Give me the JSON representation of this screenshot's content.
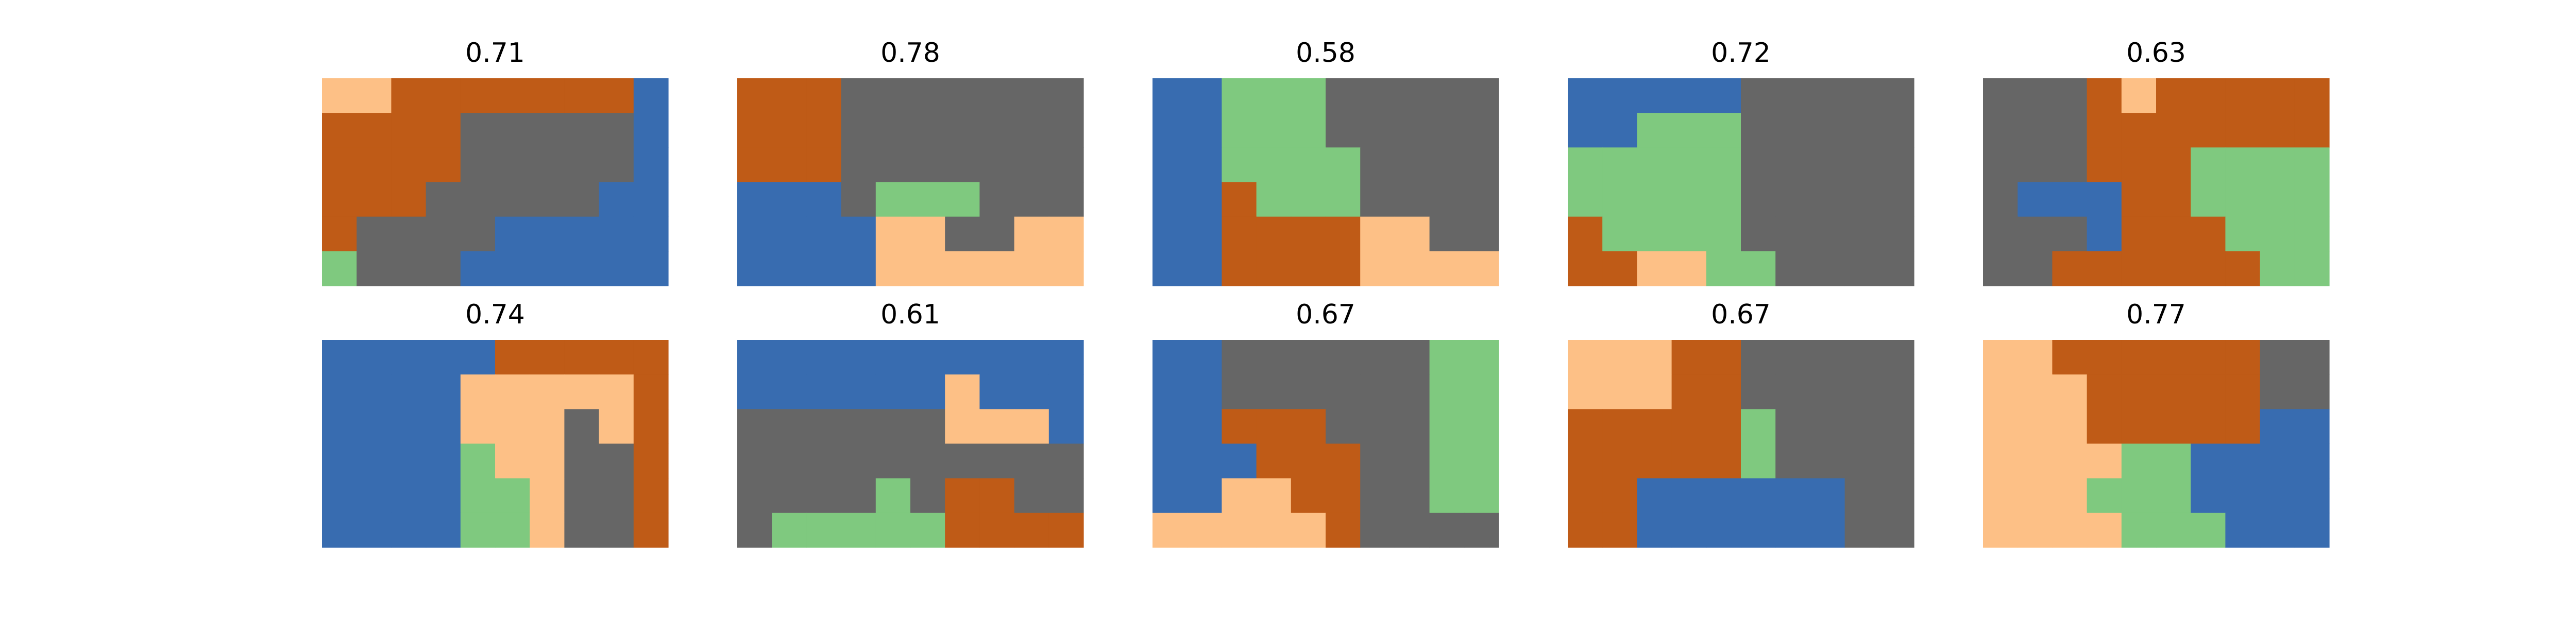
{
  "palette": {
    "blue": "#386cb0",
    "orange": "#bf5b17",
    "gray": "#666666",
    "green": "#7fc97f",
    "peach": "#fdc086"
  },
  "chart_data": [
    {
      "type": "heatmap",
      "title": "0.71",
      "grid": [
        [
          "peach",
          "peach",
          "orange",
          "orange",
          "orange",
          "orange",
          "orange",
          "orange",
          "orange",
          "blue"
        ],
        [
          "orange",
          "orange",
          "orange",
          "orange",
          "gray",
          "gray",
          "gray",
          "gray",
          "gray",
          "blue"
        ],
        [
          "orange",
          "orange",
          "orange",
          "orange",
          "gray",
          "gray",
          "gray",
          "gray",
          "gray",
          "blue"
        ],
        [
          "orange",
          "orange",
          "orange",
          "gray",
          "gray",
          "gray",
          "gray",
          "gray",
          "blue",
          "blue"
        ],
        [
          "orange",
          "gray",
          "gray",
          "gray",
          "gray",
          "blue",
          "blue",
          "blue",
          "blue",
          "blue"
        ],
        [
          "green",
          "gray",
          "gray",
          "gray",
          "blue",
          "blue",
          "blue",
          "blue",
          "blue",
          "blue"
        ]
      ]
    },
    {
      "type": "heatmap",
      "title": "0.78",
      "grid": [
        [
          "orange",
          "orange",
          "orange",
          "gray",
          "gray",
          "gray",
          "gray",
          "gray",
          "gray",
          "gray"
        ],
        [
          "orange",
          "orange",
          "orange",
          "gray",
          "gray",
          "gray",
          "gray",
          "gray",
          "gray",
          "gray"
        ],
        [
          "orange",
          "orange",
          "orange",
          "gray",
          "gray",
          "gray",
          "gray",
          "gray",
          "gray",
          "gray"
        ],
        [
          "blue",
          "blue",
          "blue",
          "gray",
          "green",
          "green",
          "green",
          "gray",
          "gray",
          "gray"
        ],
        [
          "blue",
          "blue",
          "blue",
          "blue",
          "peach",
          "peach",
          "gray",
          "gray",
          "peach",
          "peach"
        ],
        [
          "blue",
          "blue",
          "blue",
          "blue",
          "peach",
          "peach",
          "peach",
          "peach",
          "peach",
          "peach"
        ]
      ]
    },
    {
      "type": "heatmap",
      "title": "0.58",
      "grid": [
        [
          "blue",
          "blue",
          "green",
          "green",
          "green",
          "gray",
          "gray",
          "gray",
          "gray",
          "gray"
        ],
        [
          "blue",
          "blue",
          "green",
          "green",
          "green",
          "gray",
          "gray",
          "gray",
          "gray",
          "gray"
        ],
        [
          "blue",
          "blue",
          "green",
          "green",
          "green",
          "green",
          "gray",
          "gray",
          "gray",
          "gray"
        ],
        [
          "blue",
          "blue",
          "orange",
          "green",
          "green",
          "green",
          "gray",
          "gray",
          "gray",
          "gray"
        ],
        [
          "blue",
          "blue",
          "orange",
          "orange",
          "orange",
          "orange",
          "peach",
          "peach",
          "gray",
          "gray"
        ],
        [
          "blue",
          "blue",
          "orange",
          "orange",
          "orange",
          "orange",
          "peach",
          "peach",
          "peach",
          "peach"
        ]
      ]
    },
    {
      "type": "heatmap",
      "title": "0.72",
      "grid": [
        [
          "blue",
          "blue",
          "blue",
          "blue",
          "blue",
          "gray",
          "gray",
          "gray",
          "gray",
          "gray"
        ],
        [
          "blue",
          "blue",
          "green",
          "green",
          "green",
          "gray",
          "gray",
          "gray",
          "gray",
          "gray"
        ],
        [
          "green",
          "green",
          "green",
          "green",
          "green",
          "gray",
          "gray",
          "gray",
          "gray",
          "gray"
        ],
        [
          "green",
          "green",
          "green",
          "green",
          "green",
          "gray",
          "gray",
          "gray",
          "gray",
          "gray"
        ],
        [
          "orange",
          "green",
          "green",
          "green",
          "green",
          "gray",
          "gray",
          "gray",
          "gray",
          "gray"
        ],
        [
          "orange",
          "orange",
          "peach",
          "peach",
          "green",
          "green",
          "gray",
          "gray",
          "gray",
          "gray"
        ]
      ]
    },
    {
      "type": "heatmap",
      "title": "0.63",
      "grid": [
        [
          "gray",
          "gray",
          "gray",
          "orange",
          "peach",
          "orange",
          "orange",
          "orange",
          "orange",
          "orange"
        ],
        [
          "gray",
          "gray",
          "gray",
          "orange",
          "orange",
          "orange",
          "orange",
          "orange",
          "orange",
          "orange"
        ],
        [
          "gray",
          "gray",
          "gray",
          "orange",
          "orange",
          "orange",
          "green",
          "green",
          "green",
          "green"
        ],
        [
          "gray",
          "blue",
          "blue",
          "blue",
          "orange",
          "orange",
          "green",
          "green",
          "green",
          "green"
        ],
        [
          "gray",
          "gray",
          "gray",
          "blue",
          "orange",
          "orange",
          "orange",
          "green",
          "green",
          "green"
        ],
        [
          "gray",
          "gray",
          "orange",
          "orange",
          "orange",
          "orange",
          "orange",
          "orange",
          "green",
          "green"
        ]
      ]
    },
    {
      "type": "heatmap",
      "title": "0.74",
      "grid": [
        [
          "blue",
          "blue",
          "blue",
          "blue",
          "blue",
          "orange",
          "orange",
          "orange",
          "orange",
          "orange"
        ],
        [
          "blue",
          "blue",
          "blue",
          "blue",
          "peach",
          "peach",
          "peach",
          "peach",
          "peach",
          "orange"
        ],
        [
          "blue",
          "blue",
          "blue",
          "blue",
          "peach",
          "peach",
          "peach",
          "gray",
          "peach",
          "orange"
        ],
        [
          "blue",
          "blue",
          "blue",
          "blue",
          "green",
          "peach",
          "peach",
          "gray",
          "gray",
          "orange"
        ],
        [
          "blue",
          "blue",
          "blue",
          "blue",
          "green",
          "green",
          "peach",
          "gray",
          "gray",
          "orange"
        ],
        [
          "blue",
          "blue",
          "blue",
          "blue",
          "green",
          "green",
          "peach",
          "gray",
          "gray",
          "orange"
        ]
      ]
    },
    {
      "type": "heatmap",
      "title": "0.61",
      "grid": [
        [
          "blue",
          "blue",
          "blue",
          "blue",
          "blue",
          "blue",
          "blue",
          "blue",
          "blue",
          "blue"
        ],
        [
          "blue",
          "blue",
          "blue",
          "blue",
          "blue",
          "blue",
          "peach",
          "blue",
          "blue",
          "blue"
        ],
        [
          "gray",
          "gray",
          "gray",
          "gray",
          "gray",
          "gray",
          "peach",
          "peach",
          "peach",
          "blue"
        ],
        [
          "gray",
          "gray",
          "gray",
          "gray",
          "gray",
          "gray",
          "gray",
          "gray",
          "gray",
          "gray"
        ],
        [
          "gray",
          "gray",
          "gray",
          "gray",
          "green",
          "gray",
          "orange",
          "orange",
          "gray",
          "gray"
        ],
        [
          "gray",
          "green",
          "green",
          "green",
          "green",
          "green",
          "orange",
          "orange",
          "orange",
          "orange"
        ]
      ]
    },
    {
      "type": "heatmap",
      "title": "0.67",
      "grid": [
        [
          "blue",
          "blue",
          "gray",
          "gray",
          "gray",
          "gray",
          "gray",
          "gray",
          "green",
          "green"
        ],
        [
          "blue",
          "blue",
          "gray",
          "gray",
          "gray",
          "gray",
          "gray",
          "gray",
          "green",
          "green"
        ],
        [
          "blue",
          "blue",
          "orange",
          "orange",
          "orange",
          "gray",
          "gray",
          "gray",
          "green",
          "green"
        ],
        [
          "blue",
          "blue",
          "blue",
          "orange",
          "orange",
          "orange",
          "gray",
          "gray",
          "green",
          "green"
        ],
        [
          "blue",
          "blue",
          "peach",
          "peach",
          "orange",
          "orange",
          "gray",
          "gray",
          "green",
          "green"
        ],
        [
          "peach",
          "peach",
          "peach",
          "peach",
          "peach",
          "orange",
          "gray",
          "gray",
          "gray",
          "gray"
        ]
      ]
    },
    {
      "type": "heatmap",
      "title": "0.67",
      "grid": [
        [
          "peach",
          "peach",
          "peach",
          "orange",
          "orange",
          "gray",
          "gray",
          "gray",
          "gray",
          "gray"
        ],
        [
          "peach",
          "peach",
          "peach",
          "orange",
          "orange",
          "gray",
          "gray",
          "gray",
          "gray",
          "gray"
        ],
        [
          "orange",
          "orange",
          "orange",
          "orange",
          "orange",
          "green",
          "gray",
          "gray",
          "gray",
          "gray"
        ],
        [
          "orange",
          "orange",
          "orange",
          "orange",
          "orange",
          "green",
          "gray",
          "gray",
          "gray",
          "gray"
        ],
        [
          "orange",
          "orange",
          "blue",
          "blue",
          "blue",
          "blue",
          "blue",
          "blue",
          "gray",
          "gray"
        ],
        [
          "orange",
          "orange",
          "blue",
          "blue",
          "blue",
          "blue",
          "blue",
          "blue",
          "gray",
          "gray"
        ]
      ]
    },
    {
      "type": "heatmap",
      "title": "0.77",
      "grid": [
        [
          "peach",
          "peach",
          "orange",
          "orange",
          "orange",
          "orange",
          "orange",
          "orange",
          "gray",
          "gray"
        ],
        [
          "peach",
          "peach",
          "peach",
          "orange",
          "orange",
          "orange",
          "orange",
          "orange",
          "gray",
          "gray"
        ],
        [
          "peach",
          "peach",
          "peach",
          "orange",
          "orange",
          "orange",
          "orange",
          "orange",
          "blue",
          "blue"
        ],
        [
          "peach",
          "peach",
          "peach",
          "peach",
          "green",
          "green",
          "blue",
          "blue",
          "blue",
          "blue"
        ],
        [
          "peach",
          "peach",
          "peach",
          "green",
          "green",
          "green",
          "blue",
          "blue",
          "blue",
          "blue"
        ],
        [
          "peach",
          "peach",
          "peach",
          "peach",
          "green",
          "green",
          "green",
          "blue",
          "blue",
          "blue"
        ]
      ]
    }
  ]
}
